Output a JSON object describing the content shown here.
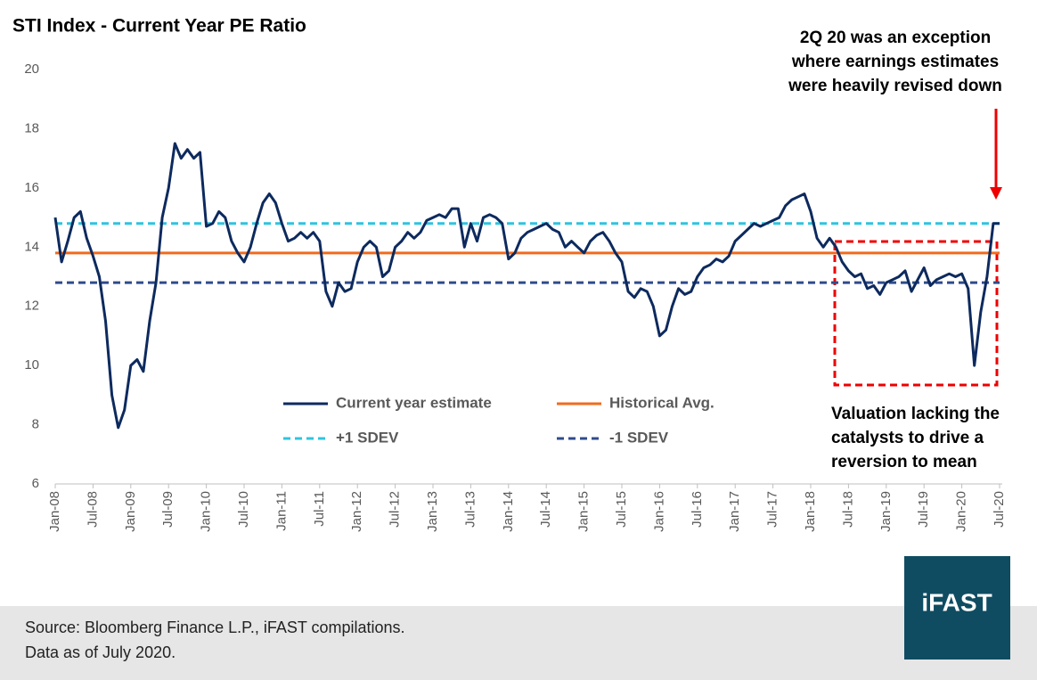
{
  "chart_data": {
    "type": "line",
    "title": "STI Index - Current Year PE Ratio",
    "categories": [
      "Jan-08",
      null,
      null,
      null,
      null,
      null,
      "Jul-08",
      null,
      null,
      null,
      null,
      null,
      "Jan-09",
      null,
      null,
      null,
      null,
      null,
      "Jul-09",
      null,
      null,
      null,
      null,
      null,
      "Jan-10",
      null,
      null,
      null,
      null,
      null,
      "Jul-10",
      null,
      null,
      null,
      null,
      null,
      "Jan-11",
      null,
      null,
      null,
      null,
      null,
      "Jul-11",
      null,
      null,
      null,
      null,
      null,
      "Jan-12",
      null,
      null,
      null,
      null,
      null,
      "Jul-12",
      null,
      null,
      null,
      null,
      null,
      "Jan-13",
      null,
      null,
      null,
      null,
      null,
      "Jul-13",
      null,
      null,
      null,
      null,
      null,
      "Jan-14",
      null,
      null,
      null,
      null,
      null,
      "Jul-14",
      null,
      null,
      null,
      null,
      null,
      "Jan-15",
      null,
      null,
      null,
      null,
      null,
      "Jul-15",
      null,
      null,
      null,
      null,
      null,
      "Jan-16",
      null,
      null,
      null,
      null,
      null,
      "Jul-16",
      null,
      null,
      null,
      null,
      null,
      "Jan-17",
      null,
      null,
      null,
      null,
      null,
      "Jul-17",
      null,
      null,
      null,
      null,
      null,
      "Jan-18",
      null,
      null,
      null,
      null,
      null,
      "Jul-18",
      null,
      null,
      null,
      null,
      null,
      "Jan-19",
      null,
      null,
      null,
      null,
      null,
      "Jul-19",
      null,
      null,
      null,
      null,
      null,
      "Jan-20",
      null,
      null,
      null,
      null,
      null,
      "Jul-20"
    ],
    "series": [
      {
        "name": "Current year estimate",
        "color": "#0d2a5e",
        "values": [
          15.0,
          13.5,
          14.2,
          15.0,
          15.2,
          14.3,
          13.7,
          13.0,
          11.5,
          9.0,
          7.9,
          8.5,
          10.0,
          10.2,
          9.8,
          11.5,
          12.8,
          15.0,
          16.0,
          17.5,
          17.0,
          17.3,
          17.0,
          17.2,
          14.7,
          14.8,
          15.2,
          15.0,
          14.2,
          13.8,
          13.5,
          14.0,
          14.8,
          15.5,
          15.8,
          15.5,
          14.8,
          14.2,
          14.3,
          14.5,
          14.3,
          14.5,
          14.2,
          12.5,
          12.0,
          12.8,
          12.5,
          12.6,
          13.5,
          14.0,
          14.2,
          14.0,
          13.0,
          13.2,
          14.0,
          14.2,
          14.5,
          14.3,
          14.5,
          14.9,
          15.0,
          15.1,
          15.0,
          15.3,
          15.3,
          14.0,
          14.8,
          14.2,
          15.0,
          15.1,
          15.0,
          14.8,
          13.6,
          13.8,
          14.3,
          14.5,
          14.6,
          14.7,
          14.8,
          14.6,
          14.5,
          14.0,
          14.2,
          14.0,
          13.8,
          14.2,
          14.4,
          14.5,
          14.2,
          13.8,
          13.5,
          12.5,
          12.3,
          12.6,
          12.5,
          12.0,
          11.0,
          11.2,
          12.0,
          12.6,
          12.4,
          12.5,
          13.0,
          13.3,
          13.4,
          13.6,
          13.5,
          13.7,
          14.2,
          14.4,
          14.6,
          14.8,
          14.7,
          14.8,
          14.9,
          15.0,
          15.4,
          15.6,
          15.7,
          15.8,
          15.2,
          14.3,
          14.0,
          14.3,
          14.0,
          13.5,
          13.2,
          13.0,
          13.1,
          12.6,
          12.7,
          12.4,
          12.8,
          12.9,
          13.0,
          13.2,
          12.5,
          12.9,
          13.3,
          12.7,
          12.9,
          13.0,
          13.1,
          13.0,
          13.1,
          12.6,
          10.0,
          11.8,
          13.0,
          14.8,
          14.8
        ]
      }
    ],
    "reference_lines": [
      {
        "name": "Historical Avg.",
        "value": 13.8,
        "color": "#f26b1d",
        "dashed": false
      },
      {
        "name": "+1 SDEV",
        "value": 14.8,
        "color": "#2ec4e0",
        "dashed": true
      },
      {
        "name": "-1 SDEV",
        "value": 12.8,
        "color": "#2f4c8c",
        "dashed": true
      }
    ],
    "ylim": [
      6,
      20
    ],
    "yticks": [
      6,
      8,
      10,
      12,
      14,
      16,
      18,
      20
    ],
    "grid": false,
    "annotations": [
      {
        "lines": [
          "2Q 20 was an exception",
          "where earnings estimates",
          "were heavily revised down"
        ]
      },
      {
        "lines": [
          "Valuation lacking the",
          "catalysts to drive a",
          "reversion to mean"
        ]
      }
    ],
    "source": [
      "Source: Bloomberg Finance L.P., iFAST compilations.",
      "Data as of July 2020."
    ],
    "logo": "iFAST"
  }
}
